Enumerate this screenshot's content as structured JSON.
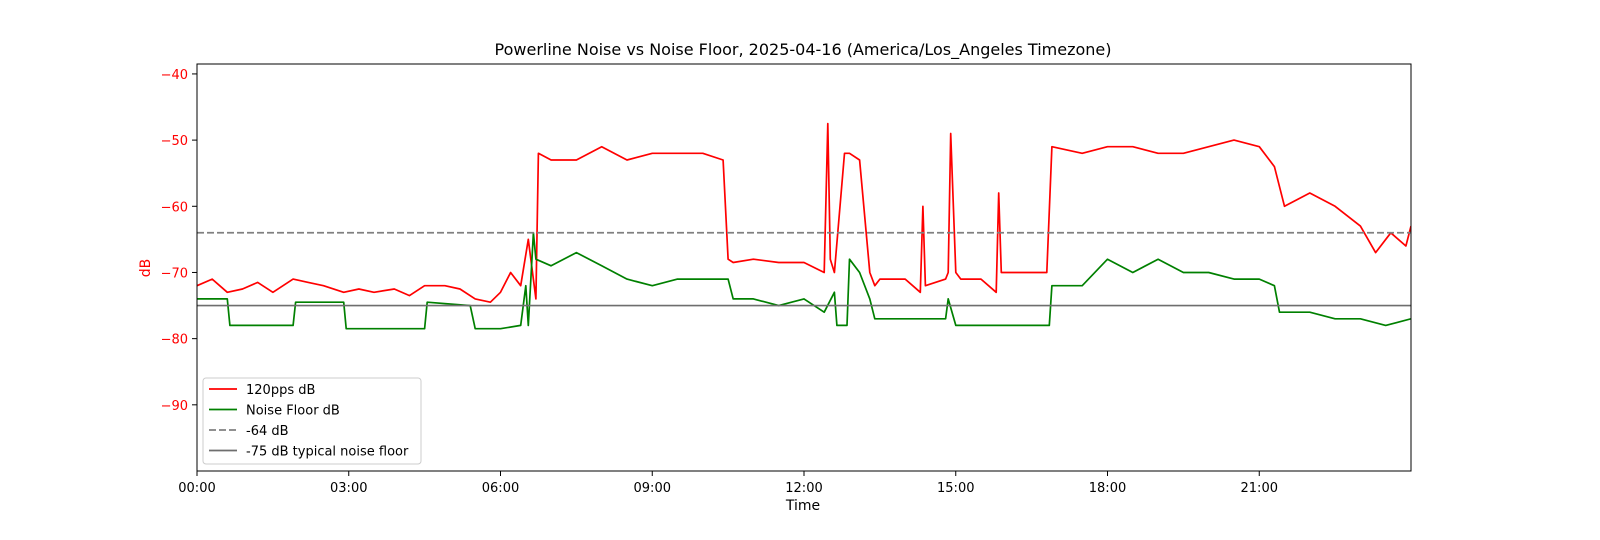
{
  "chart_data": {
    "type": "line",
    "title": "Powerline Noise vs Noise Floor, 2025-04-16 (America/Los_Angeles Timezone)",
    "xlabel": "Time",
    "ylabel": "dB",
    "xlim_hours": [
      0,
      24
    ],
    "ylim": [
      -100,
      -38.5
    ],
    "x_ticks": [
      "00:00",
      "03:00",
      "06:00",
      "09:00",
      "12:00",
      "15:00",
      "18:00",
      "21:00"
    ],
    "y_ticks": [
      -90,
      -80,
      -70,
      -60,
      -50,
      -40
    ],
    "ylabel_color": "#ff0000",
    "grid": false,
    "legend_position": "lower-left",
    "series": [
      {
        "name": "120pps dB",
        "color": "#ff0000",
        "hours": [
          0,
          0.3,
          0.6,
          0.9,
          1.2,
          1.5,
          1.9,
          2.2,
          2.5,
          2.9,
          3.2,
          3.5,
          3.9,
          4.2,
          4.5,
          4.9,
          5.2,
          5.5,
          5.8,
          6.0,
          6.2,
          6.4,
          6.55,
          6.7,
          6.75,
          7.0,
          7.5,
          8.0,
          8.5,
          9.0,
          9.5,
          10.0,
          10.4,
          10.5,
          10.6,
          11.0,
          11.5,
          12.0,
          12.4,
          12.47,
          12.52,
          12.6,
          12.8,
          12.9,
          13.1,
          13.3,
          13.4,
          13.5,
          14.0,
          14.3,
          14.35,
          14.4,
          14.8,
          14.85,
          14.9,
          15.0,
          15.1,
          15.5,
          15.8,
          15.85,
          15.9,
          16.5,
          16.8,
          16.9,
          17.5,
          18.0,
          18.5,
          19.0,
          19.5,
          20.0,
          20.5,
          21.0,
          21.3,
          21.5,
          22.0,
          22.5,
          23.0,
          23.3,
          23.6,
          23.9,
          24.0
        ],
        "values": [
          -72,
          -71,
          -73,
          -72.5,
          -71.5,
          -73,
          -71,
          -71.5,
          -72,
          -73,
          -72.5,
          -73,
          -72.5,
          -73.5,
          -72,
          -72,
          -72.5,
          -74,
          -74.5,
          -73,
          -70,
          -72,
          -65,
          -74,
          -52,
          -53,
          -53,
          -51,
          -53,
          -52,
          -52,
          -52,
          -53,
          -68,
          -68.5,
          -68,
          -68.5,
          -68.5,
          -70,
          -47.5,
          -68,
          -70,
          -52,
          -52,
          -53,
          -70,
          -72,
          -71,
          -71,
          -73,
          -60,
          -72,
          -71,
          -70,
          -49,
          -70,
          -71,
          -71,
          -73,
          -58,
          -70,
          -70,
          -70,
          -51,
          -52,
          -51,
          -51,
          -52,
          -52,
          -51,
          -50,
          -51,
          -54,
          -60,
          -58,
          -60,
          -63,
          -67,
          -64,
          -66,
          -63
        ]
      },
      {
        "name": "Noise Floor dB",
        "color": "#008000",
        "hours": [
          0,
          0.6,
          0.65,
          1.5,
          1.9,
          1.95,
          2.9,
          2.95,
          4.5,
          4.55,
          5.4,
          5.5,
          6.0,
          6.4,
          6.5,
          6.55,
          6.65,
          6.7,
          7.0,
          7.5,
          8.0,
          8.5,
          9.0,
          9.5,
          10.0,
          10.5,
          10.6,
          11.0,
          11.5,
          12.0,
          12.4,
          12.6,
          12.65,
          12.85,
          12.9,
          13.1,
          13.3,
          13.4,
          14.0,
          14.8,
          14.85,
          15.0,
          15.5,
          16.0,
          16.5,
          16.85,
          16.9,
          17.5,
          18.0,
          18.5,
          19.0,
          19.5,
          20.0,
          20.5,
          20.6,
          21.0,
          21.3,
          21.4,
          21.6,
          22.0,
          22.5,
          23.0,
          23.5,
          24.0
        ],
        "values": [
          -74,
          -74,
          -78,
          -78,
          -78,
          -74.5,
          -74.5,
          -78.5,
          -78.5,
          -74.5,
          -75,
          -78.5,
          -78.5,
          -78,
          -72,
          -78,
          -64,
          -68,
          -69,
          -67,
          -69,
          -71,
          -72,
          -71,
          -71,
          -71,
          -74,
          -74,
          -75,
          -74,
          -76,
          -73,
          -78,
          -78,
          -68,
          -70,
          -74,
          -77,
          -77,
          -77,
          -74,
          -78,
          -78,
          -78,
          -78,
          -78,
          -72,
          -72,
          -68,
          -70,
          -68,
          -70,
          -70,
          -71,
          -71,
          -71,
          -72,
          -76,
          -76,
          -76,
          -77,
          -77,
          -78,
          -77
        ]
      },
      {
        "name": "-64 dB",
        "color": "#808080",
        "style": "dashed",
        "y": -64
      },
      {
        "name": "-75 dB typical noise floor",
        "color": "#6e6e6e",
        "style": "solid",
        "y": -75
      }
    ]
  }
}
